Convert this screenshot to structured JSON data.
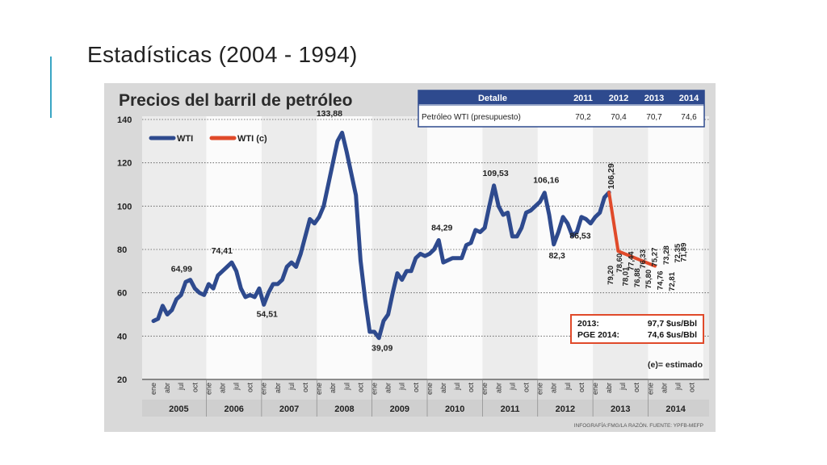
{
  "slide": {
    "title": "Estadísticas (2004 - 1994)"
  },
  "chart_data": {
    "type": "line",
    "title": "Precios del barril de petróleo",
    "yticks": [
      20,
      40,
      60,
      80,
      100,
      120,
      140
    ],
    "ylim": [
      20,
      140
    ],
    "grid": true,
    "legend": {
      "position": "top-left",
      "items": [
        {
          "name": "WTI",
          "color": "#2e4a8e"
        },
        {
          "name": "WTI (c)",
          "color": "#e04a2a"
        }
      ]
    },
    "month_labels": [
      "ene",
      "abr",
      "jul",
      "oct"
    ],
    "years": [
      "2005",
      "2006",
      "2007",
      "2008",
      "2009",
      "2010",
      "2011",
      "2012",
      "2013",
      "2014"
    ],
    "series": [
      {
        "name": "WTI",
        "color": "#2e4a8e",
        "points": [
          [
            0,
            47
          ],
          [
            1,
            48
          ],
          [
            2,
            54
          ],
          [
            3,
            50
          ],
          [
            4,
            52
          ],
          [
            5,
            57
          ],
          [
            6,
            59
          ],
          [
            7,
            65
          ],
          [
            8,
            66
          ],
          [
            9,
            62
          ],
          [
            10,
            60
          ],
          [
            11,
            59
          ],
          [
            12,
            64
          ],
          [
            13,
            62
          ],
          [
            14,
            68
          ],
          [
            15,
            70
          ],
          [
            16,
            72
          ],
          [
            17,
            74
          ],
          [
            18,
            70
          ],
          [
            19,
            62
          ],
          [
            20,
            58
          ],
          [
            21,
            59
          ],
          [
            22,
            58
          ],
          [
            23,
            62
          ],
          [
            24,
            54.5
          ],
          [
            25,
            60
          ],
          [
            26,
            64
          ],
          [
            27,
            64
          ],
          [
            28,
            66
          ],
          [
            29,
            72
          ],
          [
            30,
            74
          ],
          [
            31,
            72
          ],
          [
            32,
            78
          ],
          [
            33,
            86
          ],
          [
            34,
            94
          ],
          [
            35,
            92
          ],
          [
            36,
            95
          ],
          [
            37,
            100
          ],
          [
            38,
            110
          ],
          [
            39,
            120
          ],
          [
            40,
            130
          ],
          [
            41,
            133.9
          ],
          [
            42,
            125
          ],
          [
            43,
            115
          ],
          [
            44,
            105
          ],
          [
            45,
            75
          ],
          [
            46,
            57
          ],
          [
            47,
            42
          ],
          [
            48,
            42
          ],
          [
            49,
            39.1
          ],
          [
            50,
            47
          ],
          [
            51,
            50
          ],
          [
            52,
            60
          ],
          [
            53,
            69
          ],
          [
            54,
            66
          ],
          [
            55,
            70
          ],
          [
            56,
            70
          ],
          [
            57,
            76
          ],
          [
            58,
            78
          ],
          [
            59,
            77
          ],
          [
            60,
            78
          ],
          [
            61,
            80
          ],
          [
            62,
            84.3
          ],
          [
            63,
            74
          ],
          [
            64,
            75
          ],
          [
            65,
            76
          ],
          [
            66,
            76
          ],
          [
            67,
            76
          ],
          [
            68,
            82
          ],
          [
            69,
            83
          ],
          [
            70,
            89
          ],
          [
            71,
            88
          ],
          [
            72,
            90
          ],
          [
            73,
            100
          ],
          [
            74,
            109.5
          ],
          [
            75,
            100
          ],
          [
            76,
            96
          ],
          [
            77,
            97
          ],
          [
            78,
            86
          ],
          [
            79,
            86
          ],
          [
            80,
            90
          ],
          [
            81,
            97
          ],
          [
            82,
            98
          ],
          [
            83,
            100
          ],
          [
            84,
            102
          ],
          [
            85,
            106.2
          ],
          [
            86,
            96
          ],
          [
            87,
            82.3
          ],
          [
            88,
            88
          ],
          [
            89,
            95
          ],
          [
            90,
            92
          ],
          [
            91,
            86.5
          ],
          [
            92,
            88
          ],
          [
            93,
            95
          ],
          [
            94,
            94
          ],
          [
            95,
            92
          ],
          [
            96,
            95
          ],
          [
            97,
            97
          ],
          [
            98,
            104
          ],
          [
            99,
            106.3
          ]
        ]
      },
      {
        "name": "WTI (c)",
        "color": "#e04a2a",
        "points": [
          [
            99,
            106.3
          ],
          [
            101,
            79.2
          ],
          [
            109,
            72.35
          ]
        ]
      }
    ],
    "annotations": [
      "133,88",
      "74,41",
      "64,99",
      "54,51",
      "39,09",
      "84,29",
      "109,53",
      "106,16",
      "82,3",
      "86,53",
      "106,29"
    ],
    "forecast_labels": [
      "79,20",
      "78,60",
      "78,01",
      "77,44",
      "76,88",
      "76,33",
      "75,80",
      "75,27",
      "74,76",
      "73,28",
      "72,81",
      "72,35",
      "71,89"
    ],
    "table": {
      "headers": [
        "Detalle",
        "2011",
        "2012",
        "2013",
        "2014"
      ],
      "row": [
        "Petróleo WTI (presupuesto)",
        "70,2",
        "70,4",
        "70,7",
        "74,6"
      ]
    },
    "infobox": {
      "l1a": "2013:",
      "l1b": "97,7 $us/Bbl",
      "l2a": "PGE 2014:",
      "l2b": "74,6 $us/Bbl"
    },
    "estimate_note": "(e)= estimado",
    "source": "INFOGRAFÍA:FMG/LA RAZÓN. FUENTE: YPFB-MEFP"
  }
}
